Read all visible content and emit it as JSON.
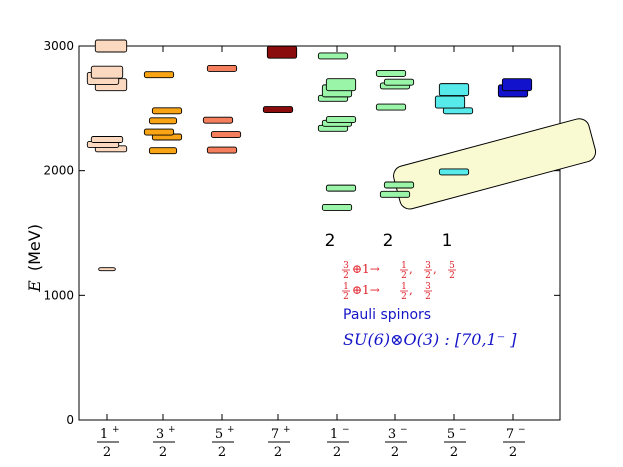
{
  "chart_data": {
    "type": "level-diagram",
    "ylabel_symbol": "E",
    "ylabel_unit": "(MeV)",
    "ylim": [
      0,
      3000
    ],
    "yticks": [
      "0",
      "1000",
      "2000",
      "3000"
    ],
    "categories": [
      {
        "num": "1",
        "sup": "+",
        "den": "2"
      },
      {
        "num": "3",
        "sup": "+",
        "den": "2"
      },
      {
        "num": "5",
        "sup": "+",
        "den": "2"
      },
      {
        "num": "7",
        "sup": "+",
        "den": "2"
      },
      {
        "num": "1",
        "sup": "−",
        "den": "2"
      },
      {
        "num": "3",
        "sup": "−",
        "den": "2"
      },
      {
        "num": "5",
        "sup": "−",
        "den": "2"
      },
      {
        "num": "7",
        "sup": "−",
        "den": "2"
      }
    ],
    "levels": [
      {
        "cat": 0,
        "e": 1210,
        "width": 0.08,
        "color": "#fbd9c1"
      },
      {
        "cat": 0,
        "e": 2175,
        "width": 0.15,
        "color": "#fbd9c1"
      },
      {
        "cat": 0,
        "e": 2210,
        "width": 0.15,
        "color": "#fbd9c1"
      },
      {
        "cat": 0,
        "e": 2250,
        "width": 0.15,
        "color": "#fbd9c1"
      },
      {
        "cat": 0,
        "e": 2690,
        "width": 0.15,
        "color": "#fbd9c1"
      },
      {
        "cat": 0,
        "e": 2740,
        "width": 0.15,
        "color": "#fbd9c1"
      },
      {
        "cat": 0,
        "e": 2790,
        "width": 0.15,
        "color": "#fbd9c1"
      },
      {
        "cat": 0,
        "e": 3000,
        "width": 0.15,
        "color": "#fbd9c1"
      },
      {
        "cat": 1,
        "e": 2160,
        "width": 0.13,
        "color": "#f8a415"
      },
      {
        "cat": 1,
        "e": 2270,
        "width": 0.14,
        "color": "#f8a415"
      },
      {
        "cat": 1,
        "e": 2310,
        "width": 0.14,
        "color": "#f8a415"
      },
      {
        "cat": 1,
        "e": 2400,
        "width": 0.13,
        "color": "#f8a415"
      },
      {
        "cat": 1,
        "e": 2480,
        "width": 0.14,
        "color": "#f8a415"
      },
      {
        "cat": 1,
        "e": 2770,
        "width": 0.14,
        "color": "#f8a415"
      },
      {
        "cat": 2,
        "e": 2165,
        "width": 0.14,
        "color": "#f57f5d"
      },
      {
        "cat": 2,
        "e": 2290,
        "width": 0.14,
        "color": "#f57f5d"
      },
      {
        "cat": 2,
        "e": 2405,
        "width": 0.14,
        "color": "#f57f5d"
      },
      {
        "cat": 2,
        "e": 2820,
        "width": 0.14,
        "color": "#f57f5d"
      },
      {
        "cat": 3,
        "e": 2490,
        "width": 0.14,
        "color": "#8b0c0c"
      },
      {
        "cat": 3,
        "e": 2950,
        "width": 0.14,
        "color": "#8b0c0c"
      },
      {
        "cat": 4,
        "e": 1705,
        "width": 0.14,
        "color": "#9bf5a8"
      },
      {
        "cat": 4,
        "e": 1860,
        "width": 0.14,
        "color": "#9bf5a8"
      },
      {
        "cat": 4,
        "e": 2340,
        "width": 0.14,
        "color": "#9bf5a8"
      },
      {
        "cat": 4,
        "e": 2380,
        "width": 0.14,
        "color": "#9bf5a8"
      },
      {
        "cat": 4,
        "e": 2410,
        "width": 0.14,
        "color": "#9bf5a8"
      },
      {
        "cat": 4,
        "e": 2580,
        "width": 0.14,
        "color": "#9bf5a8"
      },
      {
        "cat": 4,
        "e": 2640,
        "width": 0.14,
        "color": "#9bf5a8"
      },
      {
        "cat": 4,
        "e": 2690,
        "width": 0.14,
        "color": "#9bf5a8"
      },
      {
        "cat": 4,
        "e": 2920,
        "width": 0.14,
        "color": "#9bf5a8"
      },
      {
        "cat": 5,
        "e": 1810,
        "width": 0.14,
        "color": "#9bf5a8"
      },
      {
        "cat": 5,
        "e": 1885,
        "width": 0.14,
        "color": "#9bf5a8"
      },
      {
        "cat": 5,
        "e": 2510,
        "width": 0.14,
        "color": "#9bf5a8"
      },
      {
        "cat": 5,
        "e": 2680,
        "width": 0.14,
        "color": "#9bf5a8"
      },
      {
        "cat": 5,
        "e": 2710,
        "width": 0.14,
        "color": "#9bf5a8"
      },
      {
        "cat": 5,
        "e": 2780,
        "width": 0.14,
        "color": "#9bf5a8"
      },
      {
        "cat": 6,
        "e": 1990,
        "width": 0.14,
        "color": "#56eaea"
      },
      {
        "cat": 6,
        "e": 2480,
        "width": 0.14,
        "color": "#56eaea"
      },
      {
        "cat": 6,
        "e": 2550,
        "width": 0.14,
        "color": "#56eaea"
      },
      {
        "cat": 6,
        "e": 2650,
        "width": 0.14,
        "color": "#56eaea"
      },
      {
        "cat": 7,
        "e": 2640,
        "width": 0.14,
        "color": "#1212cc"
      },
      {
        "cat": 7,
        "e": 2690,
        "width": 0.14,
        "color": "#1212cc"
      }
    ],
    "band": {
      "fill": "#fafad2",
      "stroke": "#000000"
    },
    "multiplicities": [
      {
        "cat": 4,
        "label": "2"
      },
      {
        "cat": 5,
        "label": "2"
      },
      {
        "cat": 6,
        "label": "1"
      }
    ],
    "annotations": {
      "line1": {
        "num_a": "3",
        "den_a": "2",
        "op": "⊕1→",
        "values": [
          [
            "1",
            "2"
          ],
          [
            "3",
            "2"
          ],
          [
            "5",
            "2"
          ]
        ]
      },
      "line2": {
        "num_a": "1",
        "den_a": "2",
        "op": "⊕1→",
        "values": [
          [
            "1",
            "2"
          ],
          [
            "3",
            "2"
          ]
        ]
      },
      "pauli": "Pauli spinors",
      "su6": "SU(6)⊗O(3) :  [70,1⁻ ]"
    },
    "colors": {
      "annotation_red": "#e0202a",
      "annotation_blue": "#1515c8"
    }
  }
}
